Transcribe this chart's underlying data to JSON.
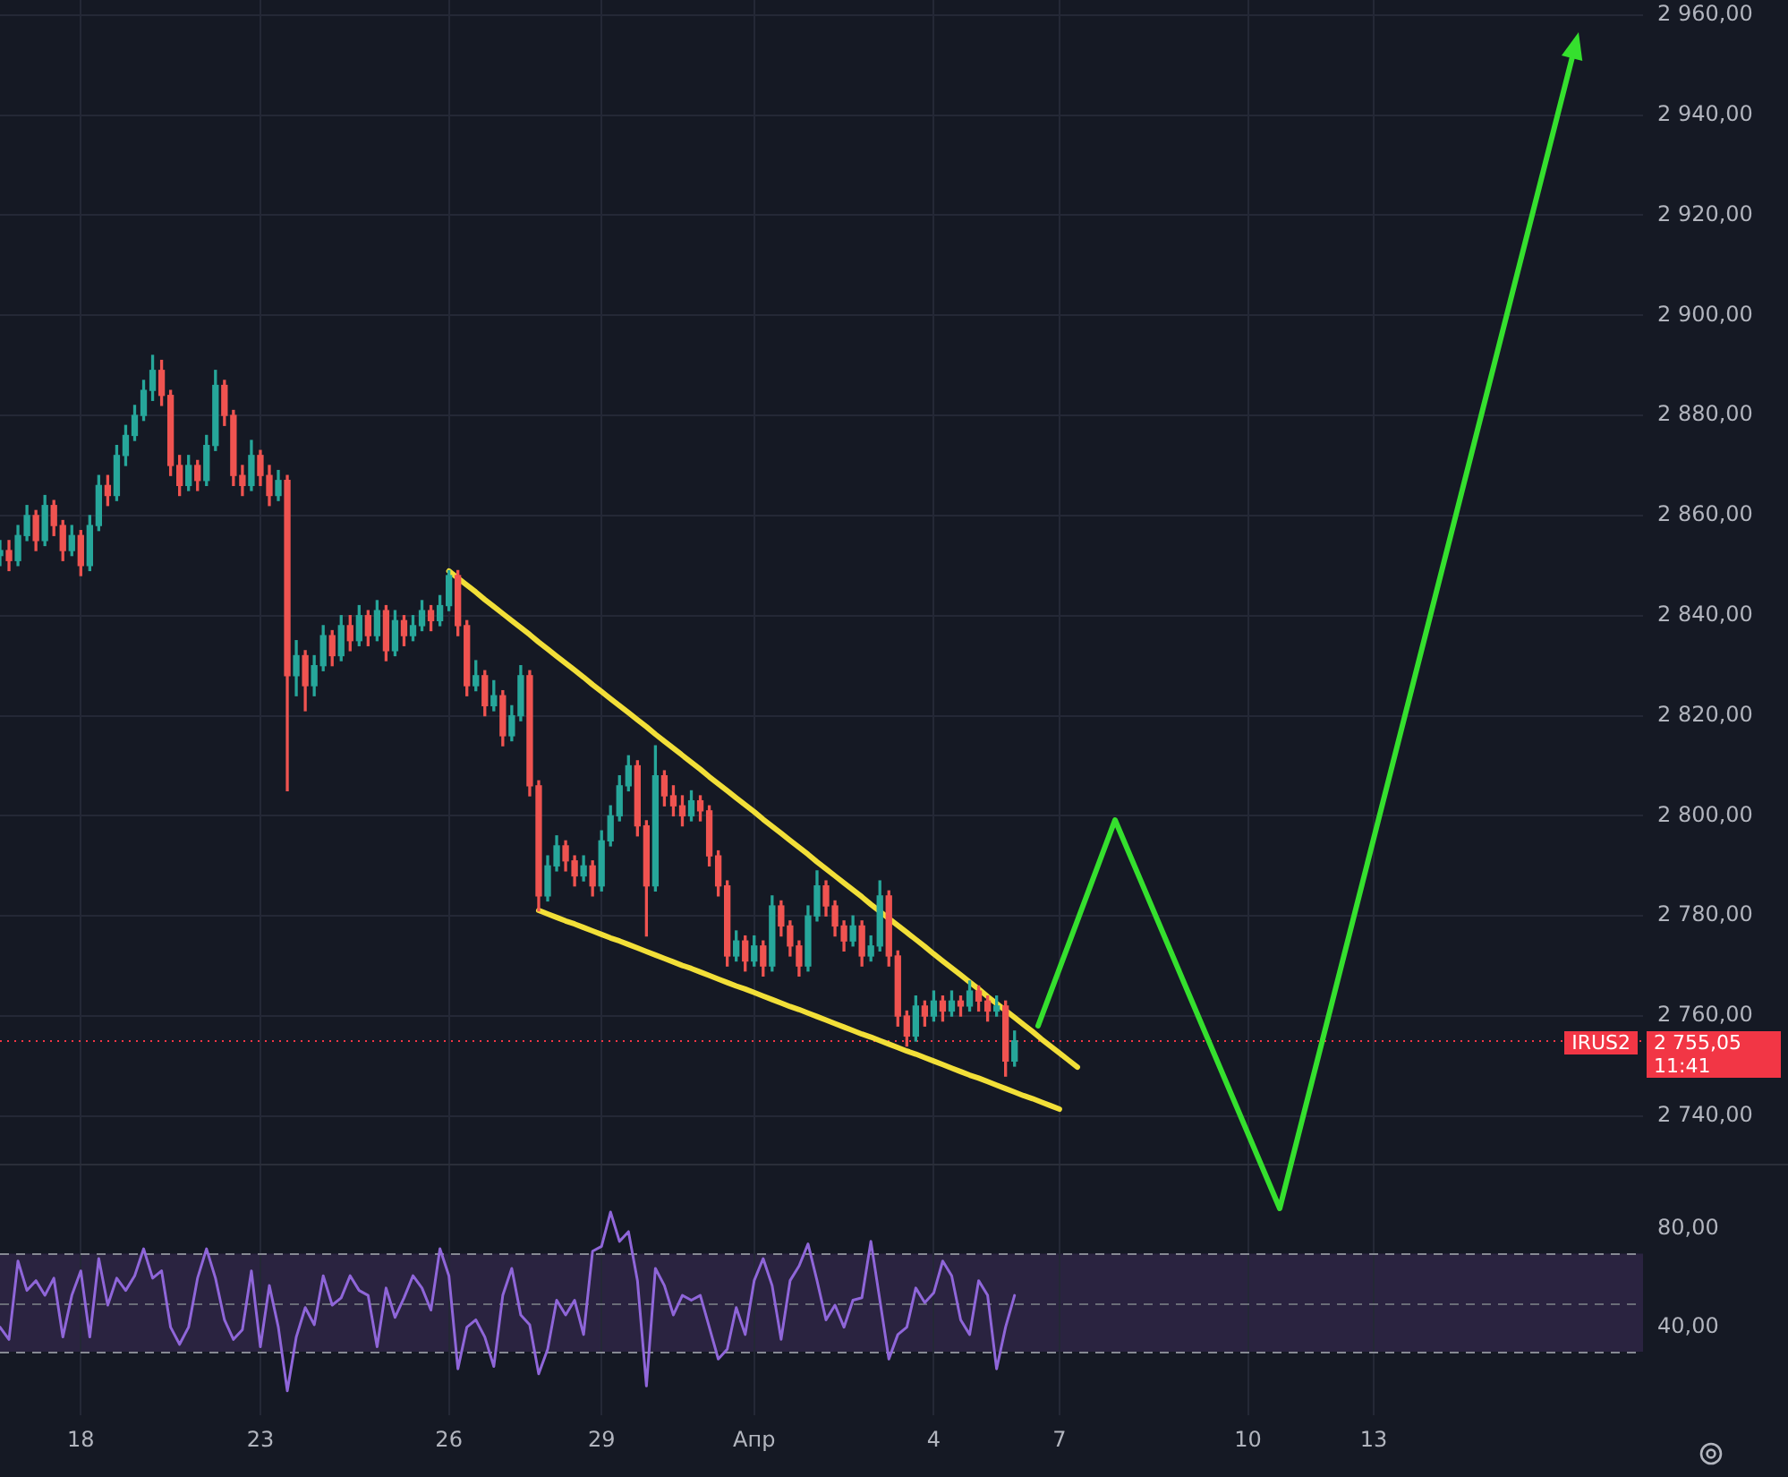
{
  "chart_data": [
    {
      "type": "candlestick",
      "categories": [
        null,
        null,
        null,
        null,
        null,
        null,
        null,
        null,
        null,
        null,
        null,
        null,
        null,
        null,
        null,
        null,
        null,
        null,
        null,
        null,
        null,
        null,
        null,
        null,
        null,
        null,
        null,
        null,
        null,
        null,
        null,
        null,
        null,
        null,
        null,
        null,
        null,
        null,
        null,
        null,
        null,
        null,
        null,
        null,
        null,
        null,
        null,
        null,
        null,
        null,
        null,
        null,
        null,
        null,
        null,
        null,
        null,
        null,
        null,
        null,
        null,
        null,
        null,
        null,
        null,
        null,
        null,
        null,
        null,
        null,
        null,
        null,
        null,
        null,
        null,
        null,
        null,
        null,
        null,
        null,
        null,
        null,
        null,
        null,
        null,
        null,
        null,
        null,
        null,
        null,
        null,
        null,
        null,
        null,
        null,
        null,
        null,
        null,
        null,
        null,
        null,
        null,
        null,
        null,
        null,
        null,
        null,
        null,
        null,
        null,
        null,
        null,
        null,
        null,
        null,
        null,
        null,
        null,
        null,
        null,
        null,
        null,
        null,
        null,
        null,
        null,
        null,
        null,
        null,
        null,
        null,
        null,
        null,
        null,
        null,
        null,
        null,
        null,
        null,
        null,
        null,
        null,
        null,
        null,
        null,
        null,
        null,
        null,
        null,
        null,
        null,
        null,
        null,
        null,
        null,
        null,
        null,
        null,
        null,
        null,
        null,
        null,
        null,
        null,
        null,
        null,
        null,
        null,
        null,
        null,
        null,
        null,
        null,
        null,
        null,
        null,
        null,
        null,
        null,
        null,
        null,
        null,
        null,
        null
      ],
      "ohlc": [
        [
          2852,
          2855,
          2850,
          2853
        ],
        [
          2853,
          2855,
          2849,
          2851
        ],
        [
          2851,
          2858,
          2850,
          2856
        ],
        [
          2856,
          2862,
          2855,
          2860
        ],
        [
          2860,
          2861,
          2853,
          2855
        ],
        [
          2855,
          2864,
          2854,
          2862
        ],
        [
          2862,
          2863,
          2856,
          2858
        ],
        [
          2858,
          2859,
          2851,
          2853
        ],
        [
          2853,
          2858,
          2852,
          2856
        ],
        [
          2856,
          2857,
          2848,
          2850
        ],
        [
          2850,
          2860,
          2849,
          2858
        ],
        [
          2858,
          2868,
          2857,
          2866
        ],
        [
          2866,
          2868,
          2862,
          2864
        ],
        [
          2864,
          2874,
          2863,
          2872
        ],
        [
          2872,
          2878,
          2870,
          2876
        ],
        [
          2876,
          2882,
          2875,
          2880
        ],
        [
          2880,
          2887,
          2879,
          2885
        ],
        [
          2885,
          2892,
          2883,
          2889
        ],
        [
          2889,
          2891,
          2882,
          2884
        ],
        [
          2884,
          2885,
          2868,
          2870
        ],
        [
          2870,
          2872,
          2864,
          2866
        ],
        [
          2866,
          2872,
          2865,
          2870
        ],
        [
          2870,
          2871,
          2865,
          2867
        ],
        [
          2867,
          2876,
          2866,
          2874
        ],
        [
          2874,
          2889,
          2873,
          2886
        ],
        [
          2886,
          2887,
          2878,
          2880
        ],
        [
          2880,
          2881,
          2866,
          2868
        ],
        [
          2868,
          2870,
          2864,
          2866
        ],
        [
          2866,
          2875,
          2865,
          2872
        ],
        [
          2872,
          2873,
          2866,
          2868
        ],
        [
          2868,
          2870,
          2862,
          2864
        ],
        [
          2864,
          2869,
          2863,
          2867
        ],
        [
          2867,
          2868,
          2805,
          2828
        ],
        [
          2828,
          2835,
          2824,
          2832
        ],
        [
          2832,
          2833,
          2821,
          2826
        ],
        [
          2826,
          2832,
          2824,
          2830
        ],
        [
          2830,
          2838,
          2829,
          2836
        ],
        [
          2836,
          2837,
          2830,
          2832
        ],
        [
          2832,
          2840,
          2831,
          2838
        ],
        [
          2838,
          2840,
          2833,
          2835
        ],
        [
          2835,
          2842,
          2834,
          2840
        ],
        [
          2840,
          2841,
          2834,
          2836
        ],
        [
          2836,
          2843,
          2835,
          2841
        ],
        [
          2841,
          2842,
          2831,
          2833
        ],
        [
          2833,
          2841,
          2832,
          2839
        ],
        [
          2839,
          2840,
          2834,
          2836
        ],
        [
          2836,
          2840,
          2835,
          2838
        ],
        [
          2838,
          2843,
          2837,
          2841
        ],
        [
          2841,
          2842,
          2837,
          2839
        ],
        [
          2839,
          2844,
          2838,
          2842
        ],
        [
          2842,
          2849,
          2841,
          2848
        ],
        [
          2848,
          2849,
          2836,
          2838
        ],
        [
          2838,
          2839,
          2824,
          2826
        ],
        [
          2826,
          2831,
          2825,
          2828
        ],
        [
          2828,
          2829,
          2820,
          2822
        ],
        [
          2822,
          2827,
          2821,
          2824
        ],
        [
          2824,
          2825,
          2814,
          2816
        ],
        [
          2816,
          2822,
          2815,
          2820
        ],
        [
          2820,
          2830,
          2819,
          2828
        ],
        [
          2828,
          2829,
          2804,
          2806
        ],
        [
          2806,
          2807,
          2781,
          2784
        ],
        [
          2784,
          2792,
          2783,
          2790
        ],
        [
          2790,
          2796,
          2789,
          2794
        ],
        [
          2794,
          2795,
          2789,
          2791
        ],
        [
          2791,
          2792,
          2786,
          2788
        ],
        [
          2788,
          2792,
          2787,
          2790
        ],
        [
          2790,
          2791,
          2784,
          2786
        ],
        [
          2786,
          2797,
          2785,
          2795
        ],
        [
          2795,
          2802,
          2794,
          2800
        ],
        [
          2800,
          2808,
          2799,
          2806
        ],
        [
          2806,
          2812,
          2805,
          2810
        ],
        [
          2810,
          2811,
          2796,
          2798
        ],
        [
          2798,
          2799,
          2776,
          2786
        ],
        [
          2786,
          2814,
          2785,
          2808
        ],
        [
          2808,
          2809,
          2802,
          2804
        ],
        [
          2804,
          2806,
          2800,
          2802
        ],
        [
          2802,
          2804,
          2798,
          2800
        ],
        [
          2800,
          2805,
          2799,
          2803
        ],
        [
          2803,
          2804,
          2799,
          2801
        ],
        [
          2801,
          2802,
          2790,
          2792
        ],
        [
          2792,
          2793,
          2784,
          2786
        ],
        [
          2786,
          2787,
          2770,
          2772
        ],
        [
          2772,
          2777,
          2771,
          2775
        ],
        [
          2775,
          2776,
          2769,
          2771
        ],
        [
          2771,
          2776,
          2770,
          2774
        ],
        [
          2774,
          2775,
          2768,
          2770
        ],
        [
          2770,
          2784,
          2769,
          2782
        ],
        [
          2782,
          2783,
          2776,
          2778
        ],
        [
          2778,
          2779,
          2772,
          2774
        ],
        [
          2774,
          2775,
          2768,
          2770
        ],
        [
          2770,
          2782,
          2769,
          2780
        ],
        [
          2780,
          2789,
          2779,
          2786
        ],
        [
          2786,
          2787,
          2780,
          2782
        ],
        [
          2782,
          2783,
          2776,
          2778
        ],
        [
          2778,
          2779,
          2773,
          2775
        ],
        [
          2775,
          2780,
          2774,
          2778
        ],
        [
          2778,
          2779,
          2770,
          2772
        ],
        [
          2772,
          2776,
          2771,
          2774
        ],
        [
          2774,
          2787,
          2773,
          2784
        ],
        [
          2784,
          2785,
          2770,
          2772
        ],
        [
          2772,
          2773,
          2758,
          2760
        ],
        [
          2760,
          2761,
          2754,
          2756
        ],
        [
          2756,
          2764,
          2755,
          2762
        ],
        [
          2762,
          2763,
          2758,
          2760
        ],
        [
          2760,
          2765,
          2759,
          2763
        ],
        [
          2763,
          2764,
          2759,
          2761
        ],
        [
          2761,
          2765,
          2760,
          2763
        ],
        [
          2763,
          2764,
          2760,
          2762
        ],
        [
          2762,
          2767,
          2761,
          2765
        ],
        [
          2765,
          2766,
          2761,
          2763
        ],
        [
          2763,
          2764,
          2759,
          2761
        ],
        [
          2761,
          2764,
          2760,
          2762
        ],
        [
          2762,
          2763,
          2748,
          2751
        ],
        [
          2751,
          2757,
          2750,
          2755.05
        ],
        null,
        null,
        null,
        null,
        null,
        null,
        null,
        null,
        null,
        null,
        null,
        null,
        null,
        null,
        null,
        null,
        null,
        null,
        null,
        null,
        null,
        null,
        null,
        null,
        null,
        null,
        null,
        null,
        null,
        null,
        null,
        null,
        null,
        null,
        null,
        null,
        null,
        null,
        null,
        null,
        null,
        null,
        null,
        null,
        null,
        null,
        null,
        null,
        null,
        null,
        null,
        null,
        null,
        null,
        null,
        null,
        null,
        null,
        null,
        null,
        null,
        null,
        null,
        null,
        null,
        null,
        null,
        null,
        null,
        null
      ],
      "colors": [
        "#26a69a",
        "#ef5350",
        "#26a69a",
        "#26a69a",
        "#ef5350",
        "#26a69a",
        "#ef5350",
        "#ef5350",
        "#26a69a",
        "#ef5350",
        "#26a69a",
        "#26a69a",
        "#ef5350",
        "#26a69a",
        "#26a69a",
        "#26a69a",
        "#26a69a",
        "#26a69a",
        "#ef5350",
        "#ef5350",
        "#ef5350",
        "#26a69a",
        "#ef5350",
        "#26a69a",
        "#26a69a",
        "#ef5350",
        "#ef5350",
        "#ef5350",
        "#26a69a",
        "#ef5350",
        "#ef5350",
        "#26a69a",
        "#ef5350",
        "#26a69a",
        "#ef5350",
        "#26a69a",
        "#26a69a",
        "#ef5350",
        "#26a69a",
        "#ef5350",
        "#26a69a",
        "#ef5350",
        "#26a69a",
        "#ef5350",
        "#26a69a",
        "#ef5350",
        "#26a69a",
        "#26a69a",
        "#ef5350",
        "#26a69a",
        "#26a69a",
        "#ef5350",
        "#ef5350",
        "#26a69a",
        "#ef5350",
        "#26a69a",
        "#ef5350",
        "#26a69a",
        "#26a69a",
        "#ef5350",
        "#ef5350",
        "#26a69a",
        "#26a69a",
        "#ef5350",
        "#ef5350",
        "#26a69a",
        "#ef5350",
        "#26a69a",
        "#26a69a",
        "#26a69a",
        "#26a69a",
        "#ef5350",
        "#ef5350",
        "#26a69a",
        "#ef5350",
        "#ef5350",
        "#ef5350",
        "#26a69a",
        "#ef5350",
        "#ef5350",
        "#ef5350",
        "#ef5350",
        "#26a69a",
        "#ef5350",
        "#26a69a",
        "#ef5350",
        "#26a69a",
        "#ef5350",
        "#ef5350",
        "#ef5350",
        "#26a69a",
        "#26a69a",
        "#ef5350",
        "#ef5350",
        "#ef5350",
        "#26a69a",
        "#ef5350",
        "#26a69a",
        "#26a69a",
        "#ef5350",
        "#ef5350",
        "#ef5350",
        "#26a69a",
        "#ef5350",
        "#26a69a",
        "#ef5350",
        "#26a69a",
        "#ef5350",
        "#26a69a",
        "#ef5350",
        "#ef5350",
        "#26a69a",
        "#ef5350",
        "#26a69a",
        null,
        null,
        null,
        null,
        null,
        null,
        null,
        null,
        null,
        null,
        null,
        null,
        null,
        null,
        null,
        null,
        null,
        null,
        null,
        null,
        null,
        null,
        null,
        null,
        null,
        null,
        null,
        null,
        null,
        null,
        null,
        null,
        null,
        null,
        null,
        null,
        null,
        null,
        null,
        null,
        null,
        null,
        null,
        null,
        null,
        null,
        null,
        null,
        null,
        null,
        null,
        null,
        null,
        null,
        null,
        null,
        null,
        null,
        null,
        null,
        null,
        null,
        null,
        null,
        null,
        null,
        null,
        null,
        null,
        null
      ],
      "series": [
        {
          "type": "line",
          "color": "#f2df38",
          "values": [
            null,
            null,
            null,
            null,
            null,
            null,
            null,
            null,
            null,
            null,
            null,
            null,
            null,
            null,
            null,
            null,
            null,
            null,
            null,
            null,
            null,
            null,
            null,
            null,
            null,
            null,
            null,
            null,
            null,
            null,
            null,
            null,
            null,
            null,
            null,
            null,
            null,
            null,
            null,
            null,
            null,
            null,
            null,
            null,
            null,
            null,
            null,
            null,
            null,
            null,
            2848.9,
            2847.5,
            2846.1,
            2844.7,
            2843.2,
            2841.8,
            2840.4,
            2839.0,
            2837.6,
            2836.2,
            2834.7,
            2833.3,
            2831.9,
            2830.5,
            2829.1,
            2827.7,
            2826.2,
            2824.8,
            2823.4,
            2822.0,
            2820.6,
            2819.2,
            2817.8,
            2816.3,
            2814.9,
            2813.5,
            2812.1,
            2810.7,
            2809.3,
            2807.8,
            2806.4,
            2805.0,
            2803.6,
            2802.2,
            2800.8,
            2799.3,
            2797.9,
            2796.5,
            2795.1,
            2793.7,
            2792.3,
            2790.8,
            2789.4,
            2788.0,
            2786.6,
            2785.2,
            2783.8,
            2782.3,
            2780.9,
            2779.5,
            2778.1,
            2776.7,
            2775.3,
            2773.9,
            2772.4,
            2771.0,
            2769.6,
            2768.2,
            2766.8,
            2765.4,
            2763.9,
            2762.5,
            2761.1,
            2759.7,
            2758.3,
            2756.9,
            2755.4,
            2754.0,
            2752.6,
            2751.2,
            2749.8,
            null,
            null,
            null,
            null,
            null,
            null,
            null,
            null,
            null,
            null,
            null,
            null,
            null,
            null,
            null,
            null,
            null,
            null,
            null,
            null,
            null,
            null,
            null,
            null,
            null,
            null,
            null,
            null,
            null,
            null,
            null,
            null,
            null,
            null,
            null,
            null,
            null,
            null,
            null,
            null,
            null,
            null,
            null,
            null,
            null,
            null,
            null,
            null,
            null,
            null,
            null,
            null,
            null,
            null,
            null,
            null,
            null,
            null,
            null,
            null,
            null,
            null,
            null
          ]
        },
        {
          "type": "line",
          "color": "#f2df38",
          "values": [
            null,
            null,
            null,
            null,
            null,
            null,
            null,
            null,
            null,
            null,
            null,
            null,
            null,
            null,
            null,
            null,
            null,
            null,
            null,
            null,
            null,
            null,
            null,
            null,
            null,
            null,
            null,
            null,
            null,
            null,
            null,
            null,
            null,
            null,
            null,
            null,
            null,
            null,
            null,
            null,
            null,
            null,
            null,
            null,
            null,
            null,
            null,
            null,
            null,
            null,
            null,
            null,
            null,
            null,
            null,
            null,
            null,
            null,
            null,
            null,
            2781.1,
            2780.4,
            2779.7,
            2779.0,
            2778.4,
            2777.7,
            2777.0,
            2776.3,
            2775.6,
            2775.0,
            2774.3,
            2773.6,
            2772.9,
            2772.2,
            2771.5,
            2770.8,
            2770.1,
            2769.5,
            2768.8,
            2768.1,
            2767.4,
            2766.7,
            2766.0,
            2765.4,
            2764.7,
            2764.0,
            2763.3,
            2762.6,
            2761.9,
            2761.3,
            2760.6,
            2759.9,
            2759.2,
            2758.5,
            2757.8,
            2757.1,
            2756.4,
            2755.8,
            2755.1,
            2754.4,
            2753.7,
            2753.0,
            2752.4,
            2751.7,
            2751.0,
            2750.3,
            2749.6,
            2748.9,
            2748.2,
            2747.6,
            2746.9,
            2746.2,
            2745.5,
            2744.8,
            2744.1,
            2743.5,
            2742.8,
            2742.1,
            2741.4,
            null,
            null,
            null,
            null,
            null,
            null,
            null,
            null,
            null,
            null,
            null,
            null,
            null,
            null,
            null,
            null,
            null,
            null,
            null,
            null,
            null,
            null,
            null,
            null,
            null,
            null,
            null,
            null,
            null,
            null,
            null,
            null,
            null,
            null,
            null,
            null,
            null,
            null,
            null,
            null,
            null,
            null,
            null,
            null,
            null,
            null,
            null,
            null,
            null,
            null,
            null,
            null,
            null,
            null,
            null,
            null,
            null,
            null,
            null,
            null,
            null,
            null,
            null,
            null,
            null
          ]
        }
      ],
      "ylim": [
        2730.5,
        2963
      ],
      "yticks": [
        {
          "value": 2740,
          "label": "2 740,00"
        },
        {
          "value": 2760,
          "label": "2 760,00"
        },
        {
          "value": 2780,
          "label": "2 780,00"
        },
        {
          "value": 2800,
          "label": "2 800,00"
        },
        {
          "value": 2820,
          "label": "2 820,00"
        },
        {
          "value": 2840,
          "label": "2 840,00"
        },
        {
          "value": 2860,
          "label": "2 860,00"
        },
        {
          "value": 2880,
          "label": "2 880,00"
        },
        {
          "value": 2900,
          "label": "2 900,00"
        },
        {
          "value": 2920,
          "label": "2 920,00"
        },
        {
          "value": 2940,
          "label": "2 940,00"
        },
        {
          "value": 2960,
          "label": "2 960,00"
        }
      ],
      "ref_lines": [
        {
          "axis": "y",
          "value": 2755.05,
          "label": "2 755,05",
          "color": "#f23645",
          "line_style": "dotted"
        }
      ],
      "annotations": [
        "IRUS2",
        "11:41"
      ],
      "grid": true,
      "tick_labels": "y"
    },
    {
      "type": "line",
      "categories": [
        null,
        null,
        null,
        null,
        null,
        null,
        null,
        null,
        null,
        "18",
        null,
        null,
        null,
        null,
        null,
        null,
        null,
        null,
        null,
        null,
        null,
        null,
        null,
        null,
        null,
        null,
        null,
        null,
        null,
        "23",
        null,
        null,
        null,
        null,
        null,
        null,
        null,
        null,
        null,
        null,
        null,
        null,
        null,
        null,
        null,
        null,
        null,
        null,
        null,
        null,
        "26",
        null,
        null,
        null,
        null,
        null,
        null,
        null,
        null,
        null,
        null,
        null,
        null,
        null,
        null,
        null,
        null,
        "29",
        null,
        null,
        null,
        null,
        null,
        null,
        null,
        null,
        null,
        null,
        null,
        null,
        null,
        null,
        null,
        null,
        "Апр",
        null,
        null,
        null,
        null,
        null,
        null,
        null,
        null,
        null,
        null,
        null,
        null,
        null,
        null,
        null,
        null,
        null,
        null,
        null,
        "4",
        null,
        null,
        null,
        null,
        null,
        null,
        null,
        null,
        null,
        null,
        null,
        null,
        null,
        "7",
        null,
        null,
        null,
        null,
        null,
        null,
        null,
        null,
        null,
        null,
        null,
        null,
        null,
        null,
        null,
        null,
        null,
        null,
        null,
        null,
        "10",
        null,
        null,
        null,
        null,
        null,
        null,
        null,
        null,
        null,
        null,
        null,
        null,
        null,
        "13",
        null,
        null,
        null,
        null,
        null,
        null,
        null,
        null,
        null,
        null,
        null,
        null,
        null,
        null,
        null,
        null,
        null,
        null,
        null,
        null,
        null,
        null,
        null,
        null,
        null,
        null,
        null,
        null,
        null,
        null
      ],
      "values": [
        40,
        35,
        67,
        55,
        59,
        53,
        60,
        36,
        53,
        63,
        36,
        68,
        49,
        60,
        55,
        61,
        72,
        60,
        63,
        40,
        33,
        40,
        60,
        72,
        60,
        43,
        35,
        39,
        63,
        32,
        57,
        40,
        14,
        36,
        48,
        41,
        61,
        49,
        52,
        61,
        55,
        53,
        32,
        56,
        44,
        52,
        61,
        56,
        47,
        72,
        61,
        23,
        40,
        43,
        36,
        24,
        53,
        64,
        45,
        41,
        21,
        31,
        51,
        45,
        51,
        37,
        71,
        73,
        87,
        75,
        79,
        59,
        16,
        64,
        57,
        45,
        53,
        51,
        53,
        40,
        27,
        31,
        48,
        37,
        59,
        68,
        57,
        35,
        59,
        65,
        74,
        59,
        43,
        49,
        40,
        51,
        52,
        75,
        51,
        27,
        37,
        40,
        56,
        50,
        54,
        67,
        61,
        43,
        37,
        59,
        53,
        23,
        40,
        53,
        null,
        null,
        null,
        null,
        null,
        null,
        null,
        null,
        null,
        null,
        null,
        null,
        null,
        null,
        null,
        null,
        null,
        null,
        null,
        null,
        null,
        null,
        null,
        null,
        null,
        null,
        null,
        null,
        null,
        null,
        null,
        null,
        null,
        null,
        null,
        null,
        null,
        null,
        null,
        null,
        null,
        null,
        null,
        null,
        null,
        null,
        null,
        null,
        null,
        null,
        null,
        null,
        null,
        null,
        null,
        null,
        null,
        null,
        null,
        null,
        null,
        null,
        null,
        null,
        null,
        null,
        null,
        null,
        null,
        null
      ],
      "color": "#8f66d9",
      "ylim": [
        4,
        106
      ],
      "yticks": [
        {
          "value": 40,
          "label": "40,00"
        },
        {
          "value": 80,
          "label": "80,00"
        }
      ],
      "ref_lines": [
        {
          "axis": "y",
          "value": 70,
          "color": "#868993",
          "line_style": "dashed"
        },
        {
          "axis": "y",
          "value": 50,
          "color": "#6a6d78",
          "line_style": "dashed"
        },
        {
          "axis": "y",
          "value": 30,
          "color": "#868993",
          "line_style": "dashed"
        }
      ],
      "bands": [
        {
          "axis": "y",
          "from": 30,
          "to": 70,
          "color": "#2a2340"
        }
      ],
      "grid": "x"
    }
  ]
}
